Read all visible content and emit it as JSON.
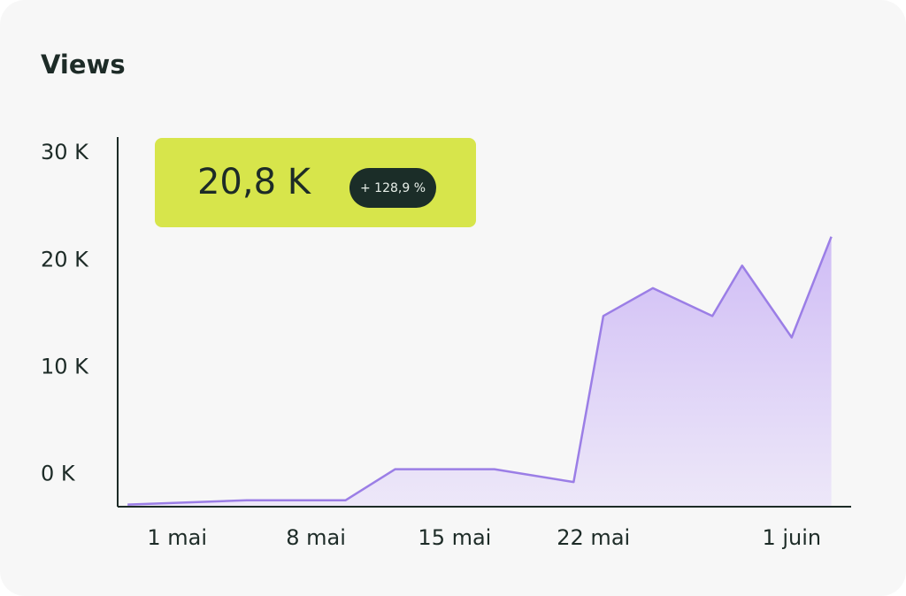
{
  "chart_data": {
    "type": "area",
    "title": "Views",
    "highlight": {
      "value_label": "20,8 K",
      "change": "+ 128,9 %"
    },
    "x": [
      -1.5,
      4.5,
      9.5,
      12,
      17,
      21,
      22.5,
      25,
      28,
      29.5,
      32,
      34
    ],
    "series": [
      {
        "color": "#9b7ee6",
        "values": [
          -2.8,
          -2.4,
          -2.4,
          0.5,
          0.5,
          -0.7,
          14.8,
          17.4,
          14.8,
          19.5,
          12.8,
          22.2
        ]
      }
    ],
    "xlim": [
      -2,
      35
    ],
    "xticks": [
      {
        "value": 1,
        "label": "1 mai"
      },
      {
        "value": 8,
        "label": "8 mai"
      },
      {
        "value": 15,
        "label": "15 mai"
      },
      {
        "value": 22,
        "label": "22 mai"
      },
      {
        "value": 32,
        "label": "1 juin"
      }
    ],
    "ylim": [
      -3,
      31.5
    ],
    "yticks": [
      {
        "value": 0,
        "label": "0 K"
      },
      {
        "value": 10,
        "label": "10 K"
      },
      {
        "value": 20,
        "label": "20 K"
      },
      {
        "value": 30,
        "label": "30 K"
      }
    ],
    "grid": false
  }
}
